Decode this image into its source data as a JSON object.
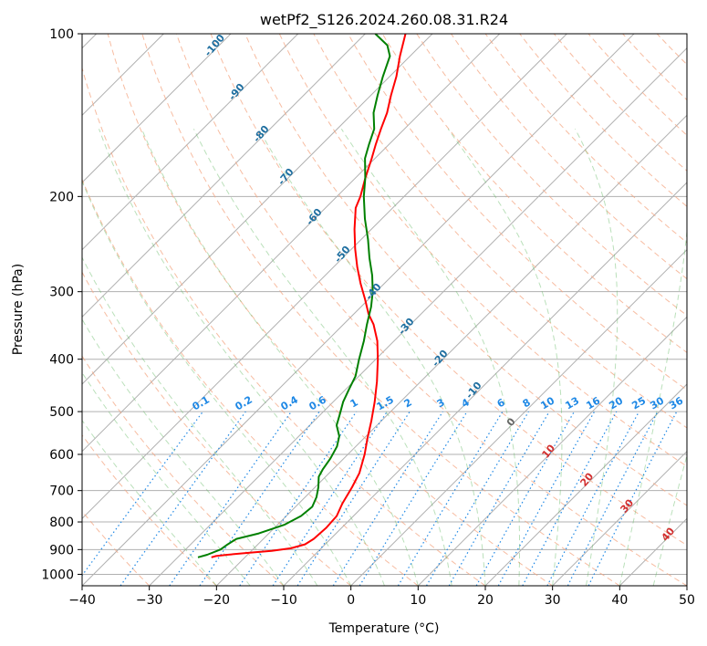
{
  "chart_data": {
    "type": "skew-t",
    "title": "wetPf2_S126.2024.260.08.31.R24",
    "xlabel": "Temperature (°C)",
    "ylabel": "Pressure (hPa)",
    "xlim": [
      -40,
      50
    ],
    "ylim": [
      1050,
      100
    ],
    "y_scale": "log",
    "x_ticks": [
      -40,
      -30,
      -20,
      -10,
      0,
      10,
      20,
      30,
      40,
      50
    ],
    "y_ticks": [
      100,
      200,
      300,
      400,
      500,
      600,
      700,
      800,
      900,
      1000
    ],
    "grid": true,
    "series": [
      {
        "name": "",
        "color": "#ff0000",
        "points": [
          [
            930,
            -25
          ],
          [
            925,
            -24.5
          ],
          [
            920,
            -23
          ],
          [
            912,
            -20
          ],
          [
            905,
            -17
          ],
          [
            895,
            -14.5
          ],
          [
            880,
            -13
          ],
          [
            860,
            -12.5
          ],
          [
            820,
            -12.3
          ],
          [
            780,
            -12.5
          ],
          [
            740,
            -13.5
          ],
          [
            690,
            -14.5
          ],
          [
            650,
            -15.5
          ],
          [
            600,
            -17.5
          ],
          [
            560,
            -19.5
          ],
          [
            520,
            -21.5
          ],
          [
            480,
            -23.8
          ],
          [
            440,
            -26.5
          ],
          [
            400,
            -29.7
          ],
          [
            370,
            -32.5
          ],
          [
            345,
            -35.5
          ],
          [
            330,
            -37.8
          ],
          [
            310,
            -40.5
          ],
          [
            290,
            -43.5
          ],
          [
            270,
            -46.5
          ],
          [
            250,
            -49.5
          ],
          [
            230,
            -52.5
          ],
          [
            210,
            -55.5
          ],
          [
            200,
            -56.5
          ],
          [
            185,
            -58.5
          ],
          [
            170,
            -60.5
          ],
          [
            160,
            -62
          ],
          [
            150,
            -63.5
          ],
          [
            140,
            -65
          ],
          [
            130,
            -67
          ],
          [
            120,
            -69
          ],
          [
            110,
            -71.5
          ],
          [
            100,
            -74
          ]
        ]
      },
      {
        "name": "",
        "color": "#008000",
        "points": [
          [
            930,
            -27
          ],
          [
            920,
            -26
          ],
          [
            900,
            -24.8
          ],
          [
            880,
            -24.5
          ],
          [
            860,
            -24
          ],
          [
            840,
            -21.5
          ],
          [
            810,
            -19
          ],
          [
            780,
            -17.8
          ],
          [
            750,
            -17.5
          ],
          [
            720,
            -18.3
          ],
          [
            690,
            -19.5
          ],
          [
            660,
            -21
          ],
          [
            640,
            -21.5
          ],
          [
            610,
            -22
          ],
          [
            580,
            -22.8
          ],
          [
            555,
            -24
          ],
          [
            530,
            -26
          ],
          [
            505,
            -27.2
          ],
          [
            480,
            -28.5
          ],
          [
            455,
            -29.5
          ],
          [
            430,
            -30.5
          ],
          [
            400,
            -32.5
          ],
          [
            370,
            -34.5
          ],
          [
            345,
            -36.5
          ],
          [
            320,
            -38.5
          ],
          [
            300,
            -40.5
          ],
          [
            280,
            -43
          ],
          [
            260,
            -46
          ],
          [
            240,
            -49
          ],
          [
            220,
            -52.5
          ],
          [
            200,
            -56
          ],
          [
            185,
            -58.5
          ],
          [
            170,
            -61.5
          ],
          [
            160,
            -63
          ],
          [
            150,
            -64.5
          ],
          [
            140,
            -67
          ],
          [
            130,
            -69
          ],
          [
            120,
            -71
          ],
          [
            110,
            -73
          ],
          [
            105,
            -75
          ],
          [
            100,
            -78.5
          ]
        ]
      }
    ],
    "dry_adiabat_labels": [
      "-100",
      "-90",
      "-80",
      "-70",
      "-60",
      "-50",
      "-40",
      "-30",
      "-20",
      "-10",
      "0"
    ],
    "moist_adiabat_labels": [
      "10",
      "20",
      "30",
      "40"
    ],
    "mixing_ratio_labels": [
      "0.1",
      "0.2",
      "0.4",
      "0.6",
      "1",
      "1.5",
      "2",
      "3",
      "4",
      "6",
      "8",
      "10",
      "13",
      "16",
      "20",
      "25",
      "30",
      "36"
    ],
    "mixing_ratio_values": [
      0.1,
      0.2,
      0.4,
      0.6,
      1,
      1.5,
      2,
      3,
      4,
      6,
      8,
      10,
      13,
      16,
      20,
      25,
      30,
      36
    ]
  }
}
